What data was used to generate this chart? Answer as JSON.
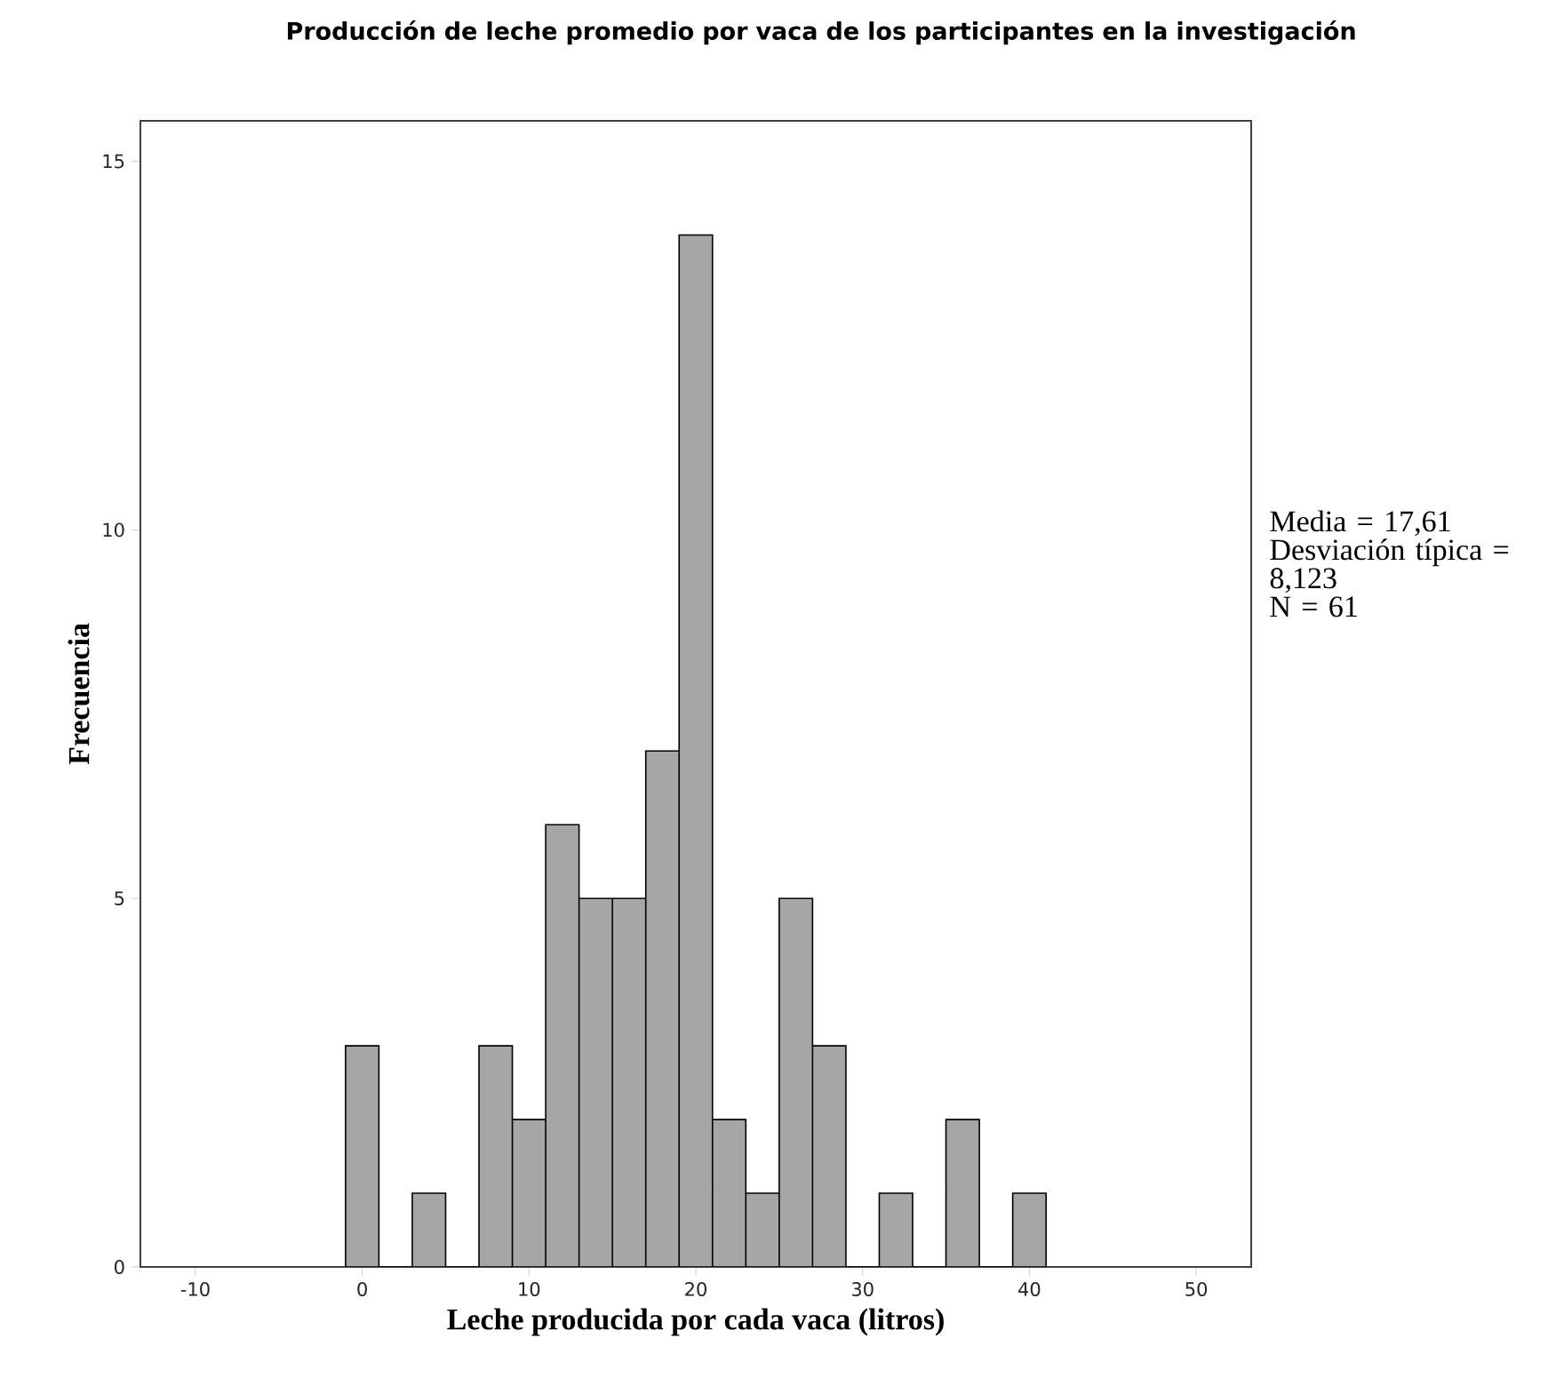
{
  "chart_data": {
    "type": "histogram",
    "title": "Producción de leche promedio por vaca de los participantes en la investigación",
    "xlabel": "Leche producida por cada vaca (litros)",
    "ylabel": "Frecuencia",
    "bins": [
      -1,
      1,
      3,
      5,
      7,
      9,
      11,
      13,
      15,
      17,
      19,
      21,
      23,
      25,
      27,
      29,
      31,
      33,
      35,
      37,
      39,
      41
    ],
    "values": [
      3,
      0,
      1,
      0,
      3,
      2,
      6,
      5,
      5,
      7,
      14,
      2,
      1,
      5,
      3,
      0,
      1,
      0,
      2,
      0,
      1
    ],
    "color": "#a6a6a6",
    "xlim": [
      -13.3,
      53.3
    ],
    "ylim": [
      0,
      15.55
    ],
    "xticks": [
      -10,
      0,
      10,
      20,
      30,
      40,
      50
    ],
    "yticks": [
      0,
      5,
      10,
      15
    ],
    "annotations": [
      "Media = 17,61",
      "Desviación típica = 8,123",
      "N = 61"
    ]
  }
}
